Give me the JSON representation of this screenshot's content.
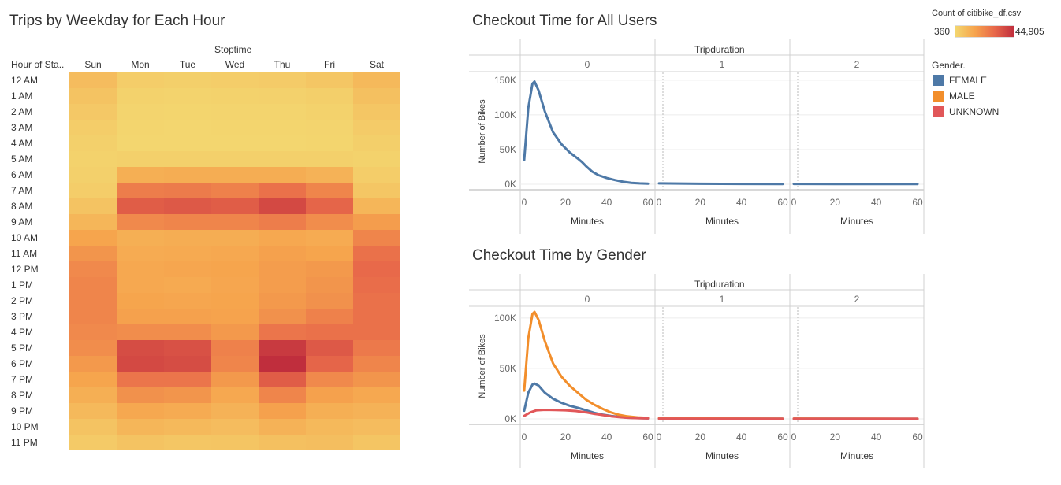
{
  "heatmap": {
    "title": "Trips by Weekday for Each Hour",
    "col_title": "Stoptime",
    "row_header": "Hour of Sta..",
    "days": [
      "Sun",
      "Mon",
      "Tue",
      "Wed",
      "Thu",
      "Fri",
      "Sat"
    ],
    "hours": [
      "12 AM",
      "1 AM",
      "2 AM",
      "3 AM",
      "4 AM",
      "5 AM",
      "6 AM",
      "7 AM",
      "8 AM",
      "9 AM",
      "10 AM",
      "11 AM",
      "12 PM",
      "1 PM",
      "2 PM",
      "3 PM",
      "4 PM",
      "5 PM",
      "6 PM",
      "7 PM",
      "8 PM",
      "9 PM",
      "10 PM",
      "11 PM"
    ],
    "color_legend": {
      "title": "Count of citibike_df.csv",
      "min_label": "360",
      "max_label": "44,905",
      "min_value": 360,
      "max_value": 44905
    }
  },
  "chart_data": [
    {
      "type": "heatmap",
      "title": "Trips by Weekday for Each Hour",
      "xlabel": "Stoptime",
      "ylabel": "Hour of Sta..",
      "x": [
        "Sun",
        "Mon",
        "Tue",
        "Wed",
        "Thu",
        "Fri",
        "Sat"
      ],
      "y": [
        "12 AM",
        "1 AM",
        "2 AM",
        "3 AM",
        "4 AM",
        "5 AM",
        "6 AM",
        "7 AM",
        "8 AM",
        "9 AM",
        "10 AM",
        "11 AM",
        "12 PM",
        "1 PM",
        "2 PM",
        "3 PM",
        "4 PM",
        "5 PM",
        "6 PM",
        "7 PM",
        "8 PM",
        "9 PM",
        "10 PM",
        "11 PM"
      ],
      "value_range": [
        360,
        44905
      ],
      "values": [
        [
          8000,
          3000,
          2500,
          3000,
          3500,
          5000,
          9000
        ],
        [
          6000,
          1500,
          1200,
          1500,
          1800,
          2500,
          7000
        ],
        [
          4500,
          900,
          800,
          900,
          1000,
          1500,
          5000
        ],
        [
          3000,
          600,
          500,
          600,
          700,
          1000,
          3500
        ],
        [
          2000,
          500,
          400,
          500,
          500,
          700,
          2500
        ],
        [
          1500,
          2000,
          2000,
          2000,
          2000,
          2000,
          1500
        ],
        [
          2000,
          12000,
          12500,
          12500,
          12500,
          11000,
          3000
        ],
        [
          3000,
          25000,
          25500,
          24000,
          28000,
          23000,
          5000
        ],
        [
          6000,
          33000,
          34000,
          33000,
          38000,
          31000,
          10000
        ],
        [
          10000,
          22000,
          23000,
          23000,
          25000,
          21000,
          17000
        ],
        [
          15000,
          12000,
          12500,
          12500,
          14000,
          13000,
          23000
        ],
        [
          19000,
          13000,
          13500,
          14000,
          16000,
          15000,
          28000
        ],
        [
          22000,
          14000,
          14500,
          15000,
          17000,
          18000,
          30000
        ],
        [
          23000,
          14000,
          13500,
          14500,
          17000,
          19000,
          29000
        ],
        [
          23000,
          15000,
          14500,
          15000,
          18000,
          20000,
          28000
        ],
        [
          23000,
          16000,
          16000,
          15500,
          20000,
          24000,
          28000
        ],
        [
          22000,
          21000,
          21000,
          18000,
          27000,
          28000,
          28000
        ],
        [
          21000,
          37000,
          36000,
          24000,
          42000,
          34000,
          26000
        ],
        [
          18000,
          38000,
          37000,
          23000,
          44905,
          31000,
          23000
        ],
        [
          15000,
          27000,
          27000,
          18000,
          33000,
          22000,
          19000
        ],
        [
          12000,
          20000,
          19000,
          14000,
          23000,
          16000,
          14000
        ],
        [
          9000,
          14000,
          13000,
          11000,
          16000,
          12000,
          11000
        ],
        [
          6000,
          10000,
          9000,
          8000,
          11000,
          9000,
          8000
        ],
        [
          4000,
          6000,
          5000,
          5500,
          7000,
          7500,
          5500
        ]
      ]
    },
    {
      "type": "line",
      "title": "Checkout Time for All Users",
      "facet_title": "Tripduration",
      "facets": [
        "0",
        "1",
        "2"
      ],
      "xlabel": "Minutes",
      "ylabel": "Number of Bikes",
      "xlim": [
        0,
        60
      ],
      "ylim": [
        0,
        160000
      ],
      "x_ticks": [
        "0",
        "20",
        "40",
        "60"
      ],
      "y_ticks": [
        "0K",
        "50K",
        "100K",
        "150K"
      ],
      "y_tick_values": [
        0,
        50000,
        100000,
        150000
      ],
      "series": [
        {
          "name": "All Users",
          "color": "#4e79a7",
          "panels": [
            [
              [
                0,
                35000
              ],
              [
                2,
                110000
              ],
              [
                4,
                145000
              ],
              [
                5,
                148000
              ],
              [
                7,
                135000
              ],
              [
                10,
                105000
              ],
              [
                14,
                75000
              ],
              [
                18,
                58000
              ],
              [
                22,
                46000
              ],
              [
                26,
                37000
              ],
              [
                28,
                32000
              ],
              [
                30,
                26000
              ],
              [
                33,
                18000
              ],
              [
                36,
                13000
              ],
              [
                40,
                9000
              ],
              [
                44,
                6000
              ],
              [
                48,
                3500
              ],
              [
                52,
                2000
              ],
              [
                56,
                1200
              ],
              [
                60,
                800
              ]
            ],
            [
              [
                0,
                1200
              ],
              [
                20,
                700
              ],
              [
                40,
                400
              ],
              [
                60,
                300
              ]
            ],
            [
              [
                0,
                500
              ],
              [
                20,
                300
              ],
              [
                40,
                250
              ],
              [
                60,
                200
              ]
            ]
          ]
        }
      ]
    },
    {
      "type": "line",
      "title": "Checkout Time by Gender",
      "facet_title": "Tripduration",
      "facets": [
        "0",
        "1",
        "2"
      ],
      "xlabel": "Minutes",
      "ylabel": "Number of Bikes",
      "xlim": [
        0,
        60
      ],
      "ylim": [
        0,
        110000
      ],
      "x_ticks": [
        "0",
        "20",
        "40",
        "60"
      ],
      "y_ticks": [
        "0K",
        "50K",
        "100K"
      ],
      "y_tick_values": [
        0,
        50000,
        100000
      ],
      "legend": {
        "title": "Gender.",
        "placement": "right"
      },
      "series": [
        {
          "name": "FEMALE",
          "color": "#4e79a7",
          "panels": [
            [
              [
                0,
                8000
              ],
              [
                2,
                26000
              ],
              [
                4,
                34000
              ],
              [
                5,
                35000
              ],
              [
                7,
                33000
              ],
              [
                10,
                26000
              ],
              [
                14,
                20000
              ],
              [
                18,
                16000
              ],
              [
                22,
                13000
              ],
              [
                26,
                11000
              ],
              [
                30,
                8500
              ],
              [
                34,
                6000
              ],
              [
                38,
                4200
              ],
              [
                42,
                3000
              ],
              [
                46,
                2000
              ],
              [
                50,
                1200
              ],
              [
                55,
                800
              ],
              [
                60,
                500
              ]
            ],
            [
              [
                0,
                400
              ],
              [
                20,
                300
              ],
              [
                40,
                200
              ],
              [
                60,
                150
              ]
            ],
            [
              [
                0,
                200
              ],
              [
                20,
                150
              ],
              [
                40,
                100
              ],
              [
                60,
                80
              ]
            ]
          ]
        },
        {
          "name": "MALE",
          "color": "#f28e2b",
          "panels": [
            [
              [
                0,
                28000
              ],
              [
                2,
                80000
              ],
              [
                4,
                104000
              ],
              [
                5,
                106000
              ],
              [
                7,
                98000
              ],
              [
                10,
                77000
              ],
              [
                14,
                55000
              ],
              [
                18,
                42000
              ],
              [
                22,
                33000
              ],
              [
                26,
                26000
              ],
              [
                30,
                19000
              ],
              [
                34,
                14000
              ],
              [
                38,
                10000
              ],
              [
                42,
                6500
              ],
              [
                46,
                4000
              ],
              [
                50,
                2500
              ],
              [
                55,
                1500
              ],
              [
                60,
                1000
              ]
            ],
            [
              [
                0,
                600
              ],
              [
                20,
                400
              ],
              [
                40,
                300
              ],
              [
                60,
                200
              ]
            ],
            [
              [
                0,
                300
              ],
              [
                20,
                200
              ],
              [
                40,
                150
              ],
              [
                60,
                100
              ]
            ]
          ]
        },
        {
          "name": "UNKNOWN",
          "color": "#e15759",
          "panels": [
            [
              [
                0,
                3000
              ],
              [
                3,
                6500
              ],
              [
                6,
                8500
              ],
              [
                10,
                9000
              ],
              [
                15,
                8800
              ],
              [
                20,
                8500
              ],
              [
                25,
                7800
              ],
              [
                30,
                6500
              ],
              [
                34,
                5000
              ],
              [
                38,
                3800
              ],
              [
                42,
                2600
              ],
              [
                46,
                1800
              ],
              [
                50,
                1100
              ],
              [
                55,
                700
              ],
              [
                60,
                500
              ]
            ],
            [
              [
                0,
                300
              ],
              [
                20,
                200
              ],
              [
                40,
                150
              ],
              [
                60,
                100
              ]
            ],
            [
              [
                0,
                150
              ],
              [
                20,
                100
              ],
              [
                40,
                80
              ],
              [
                60,
                60
              ]
            ]
          ]
        }
      ]
    }
  ],
  "line_all": {
    "title": "Checkout Time for All Users",
    "facet_title": "Tripduration",
    "facets": [
      "0",
      "1",
      "2"
    ],
    "xlabel": "Minutes",
    "ylabel": "Number of Bikes"
  },
  "line_gender": {
    "title": "Checkout Time by Gender",
    "facet_title": "Tripduration",
    "facets": [
      "0",
      "1",
      "2"
    ],
    "xlabel": "Minutes",
    "ylabel": "Number of Bikes"
  },
  "legend": {
    "title": "Gender.",
    "items": [
      {
        "label": "FEMALE",
        "color": "#4e79a7"
      },
      {
        "label": "MALE",
        "color": "#f28e2b"
      },
      {
        "label": "UNKNOWN",
        "color": "#e15759"
      }
    ]
  }
}
